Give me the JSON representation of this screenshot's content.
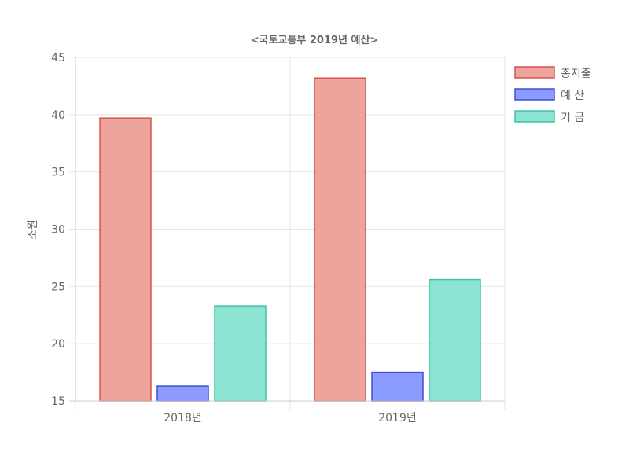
{
  "chart_data": {
    "type": "bar",
    "title": "<국토교통부 2019년 예산>",
    "ylabel": "조원",
    "xlabel": "",
    "categories": [
      "2018년",
      "2019년"
    ],
    "ylim": [
      15,
      45
    ],
    "yticks": [
      15,
      20,
      25,
      30,
      35,
      40,
      45
    ],
    "legend_position": "right",
    "grid": true,
    "series": [
      {
        "name": "총지출",
        "values": [
          39.7,
          43.2
        ],
        "fill": "#eca49c",
        "stroke": "#d9534f"
      },
      {
        "name": "예 산",
        "values": [
          16.3,
          17.5
        ],
        "fill": "#8c9bff",
        "stroke": "#3b4fd8"
      },
      {
        "name": "기 금",
        "values": [
          23.3,
          25.6
        ],
        "fill": "#8de3d2",
        "stroke": "#3cc3a5"
      }
    ]
  }
}
